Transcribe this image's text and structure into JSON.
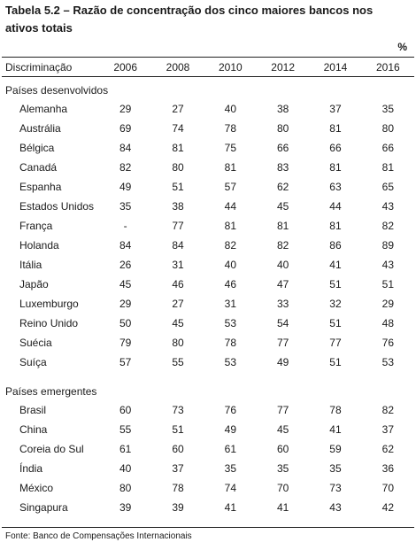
{
  "title": "Tabela 5.2 – Razão de concentração dos cinco maiores bancos nos ativos totais",
  "unit": "%",
  "columns": [
    "Discriminação",
    "2006",
    "2008",
    "2010",
    "2012",
    "2014",
    "2016"
  ],
  "groups": [
    {
      "label": "Países desenvolvidos",
      "rows": [
        {
          "name": "Alemanha",
          "values": [
            "29",
            "27",
            "40",
            "38",
            "37",
            "35"
          ]
        },
        {
          "name": "Austrália",
          "values": [
            "69",
            "74",
            "78",
            "80",
            "81",
            "80"
          ]
        },
        {
          "name": "Bélgica",
          "values": [
            "84",
            "81",
            "75",
            "66",
            "66",
            "66"
          ]
        },
        {
          "name": "Canadá",
          "values": [
            "82",
            "80",
            "81",
            "83",
            "81",
            "81"
          ]
        },
        {
          "name": "Espanha",
          "values": [
            "49",
            "51",
            "57",
            "62",
            "63",
            "65"
          ]
        },
        {
          "name": "Estados Unidos",
          "values": [
            "35",
            "38",
            "44",
            "45",
            "44",
            "43"
          ]
        },
        {
          "name": "França",
          "values": [
            "-",
            "77",
            "81",
            "81",
            "81",
            "82"
          ]
        },
        {
          "name": "Holanda",
          "values": [
            "84",
            "84",
            "82",
            "82",
            "86",
            "89"
          ]
        },
        {
          "name": "Itália",
          "values": [
            "26",
            "31",
            "40",
            "40",
            "41",
            "43"
          ]
        },
        {
          "name": "Japão",
          "values": [
            "45",
            "46",
            "46",
            "47",
            "51",
            "51"
          ]
        },
        {
          "name": "Luxemburgo",
          "values": [
            "29",
            "27",
            "31",
            "33",
            "32",
            "29"
          ]
        },
        {
          "name": "Reino Unido",
          "values": [
            "50",
            "45",
            "53",
            "54",
            "51",
            "48"
          ]
        },
        {
          "name": "Suécia",
          "values": [
            "79",
            "80",
            "78",
            "77",
            "77",
            "76"
          ]
        },
        {
          "name": "Suíça",
          "values": [
            "57",
            "55",
            "53",
            "49",
            "51",
            "53"
          ]
        }
      ]
    },
    {
      "label": "Países emergentes",
      "rows": [
        {
          "name": "Brasil",
          "values": [
            "60",
            "73",
            "76",
            "77",
            "78",
            "82"
          ]
        },
        {
          "name": "China",
          "values": [
            "55",
            "51",
            "49",
            "45",
            "41",
            "37"
          ]
        },
        {
          "name": "Coreia do Sul",
          "values": [
            "61",
            "60",
            "61",
            "60",
            "59",
            "62"
          ]
        },
        {
          "name": "Índia",
          "values": [
            "40",
            "37",
            "35",
            "35",
            "35",
            "36"
          ]
        },
        {
          "name": "México",
          "values": [
            "80",
            "78",
            "74",
            "70",
            "73",
            "70"
          ]
        },
        {
          "name": "Singapura",
          "values": [
            "39",
            "39",
            "41",
            "41",
            "43",
            "42"
          ]
        }
      ]
    }
  ],
  "source": "Fonte: Banco de Compensações Internacionais"
}
